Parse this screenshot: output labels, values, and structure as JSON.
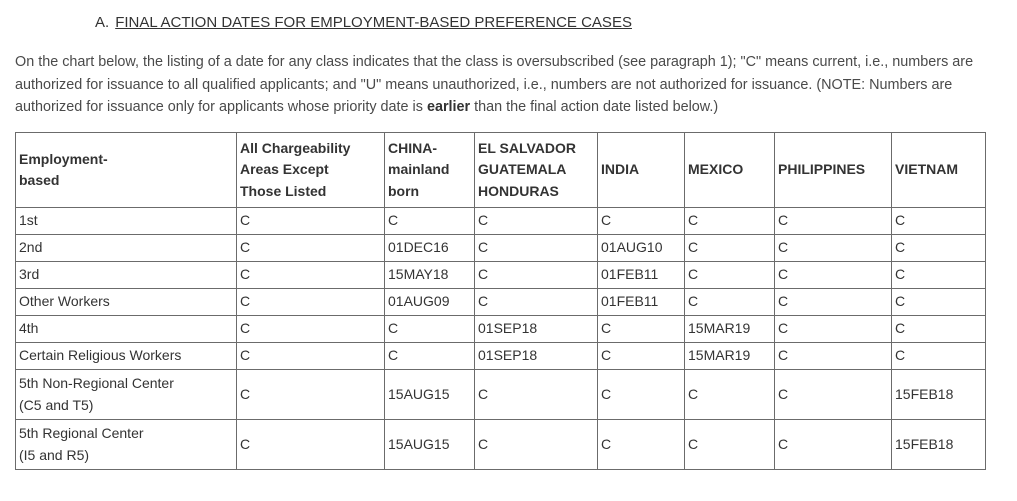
{
  "section": {
    "letter": "A.",
    "title": "FINAL ACTION DATES FOR EMPLOYMENT-BASED PREFERENCE CASES"
  },
  "intro": {
    "part1": "On the chart below, the listing of a date for any class indicates that the class is oversubscribed (see paragraph 1); \"C\" means current, i.e., numbers are authorized for issuance to all qualified applicants; and \"U\" means unauthorized, i.e., numbers are not authorized for issuance. (NOTE: Numbers are authorized for issuance only for applicants whose priority date is ",
    "emphasis": "earlier",
    "part2": " than the final action date listed below.)"
  },
  "table": {
    "headers": [
      [
        "Employment-",
        "based"
      ],
      [
        "All Chargeability",
        "Areas Except",
        "Those Listed"
      ],
      [
        "CHINA-",
        "mainland",
        "born"
      ],
      [
        "EL SALVADOR",
        "GUATEMALA",
        "HONDURAS"
      ],
      [
        "INDIA"
      ],
      [
        "MEXICO"
      ],
      [
        "PHILIPPINES"
      ],
      [
        "VIETNAM"
      ]
    ],
    "rows": [
      {
        "category": [
          "1st"
        ],
        "cells": [
          "C",
          "C",
          "C",
          "C",
          "C",
          "C",
          "C"
        ]
      },
      {
        "category": [
          "2nd"
        ],
        "cells": [
          "C",
          "01DEC16",
          "C",
          "01AUG10",
          "C",
          "C",
          "C"
        ]
      },
      {
        "category": [
          "3rd"
        ],
        "cells": [
          "C",
          "15MAY18",
          "C",
          "01FEB11",
          "C",
          "C",
          "C"
        ]
      },
      {
        "category": [
          "Other Workers"
        ],
        "cells": [
          "C",
          "01AUG09",
          "C",
          "01FEB11",
          "C",
          "C",
          "C"
        ]
      },
      {
        "category": [
          "4th"
        ],
        "cells": [
          "C",
          "C",
          "01SEP18",
          "C",
          "15MAR19",
          "C",
          "C"
        ]
      },
      {
        "category": [
          "Certain Religious Workers"
        ],
        "cells": [
          "C",
          "C",
          "01SEP18",
          "C",
          "15MAR19",
          "C",
          "C"
        ]
      },
      {
        "category": [
          "5th Non-Regional Center",
          "(C5 and T5)"
        ],
        "cells": [
          "C",
          "15AUG15",
          "C",
          "C",
          "C",
          "C",
          "15FEB18"
        ]
      },
      {
        "category": [
          "5th Regional Center",
          "(I5 and R5)"
        ],
        "cells": [
          "C",
          "15AUG15",
          "C",
          "C",
          "C",
          "C",
          "15FEB18"
        ]
      }
    ]
  }
}
